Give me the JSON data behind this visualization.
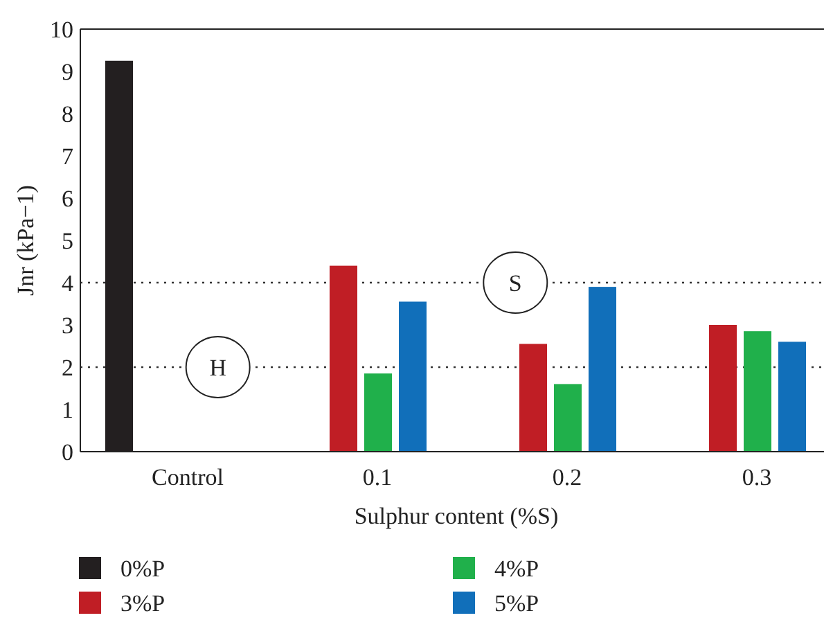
{
  "chart_data": {
    "type": "bar",
    "xlabel": "Sulphur content (%S)",
    "ylabel": "Jnr (kPa−1)",
    "categories": [
      "Control",
      "0.1",
      "0.2",
      "0.3"
    ],
    "series": [
      {
        "name": "0%P",
        "color": "#231f20",
        "values": [
          9.25,
          null,
          null,
          null
        ]
      },
      {
        "name": "3%P",
        "color": "#c01e25",
        "values": [
          null,
          4.4,
          2.55,
          3.0
        ]
      },
      {
        "name": "4%P",
        "color": "#20b04b",
        "values": [
          null,
          1.85,
          1.6,
          2.85
        ]
      },
      {
        "name": "5%P",
        "color": "#116fba",
        "values": [
          null,
          3.55,
          3.9,
          2.6
        ]
      }
    ],
    "ylim": [
      0,
      10
    ],
    "yticks": [
      0,
      1,
      2,
      3,
      4,
      5,
      6,
      7,
      8,
      9,
      10
    ],
    "ref_lines": [
      {
        "axis": "y",
        "value": 2,
        "label": "H",
        "line_style": "dotted"
      },
      {
        "axis": "y",
        "value": 4,
        "label": "S",
        "line_style": "dotted"
      }
    ],
    "legend": "bottom"
  }
}
